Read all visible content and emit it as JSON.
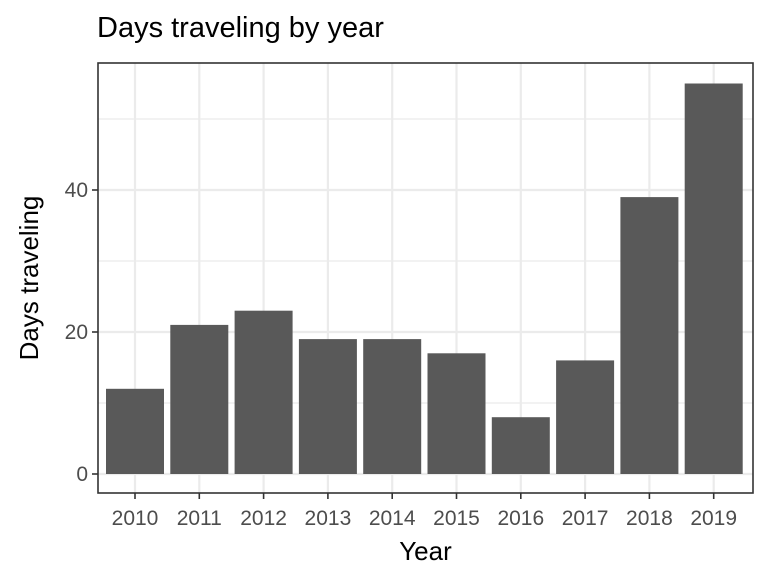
{
  "chart_data": {
    "type": "bar",
    "title": "Days traveling by year",
    "xlabel": "Year",
    "ylabel": "Days traveling",
    "categories": [
      "2010",
      "2011",
      "2012",
      "2013",
      "2014",
      "2015",
      "2016",
      "2017",
      "2018",
      "2019"
    ],
    "values": [
      12,
      21,
      23,
      19,
      19,
      17,
      8,
      16,
      39,
      55
    ],
    "ylim": [
      0,
      58.15
    ],
    "yticks": [
      0,
      20,
      40
    ],
    "grid": true,
    "legend": "none",
    "colors": {
      "bar": "#595959",
      "grid": "#ebebeb",
      "panel_border": "#333333",
      "tick_text": "#4d4d4d"
    }
  }
}
